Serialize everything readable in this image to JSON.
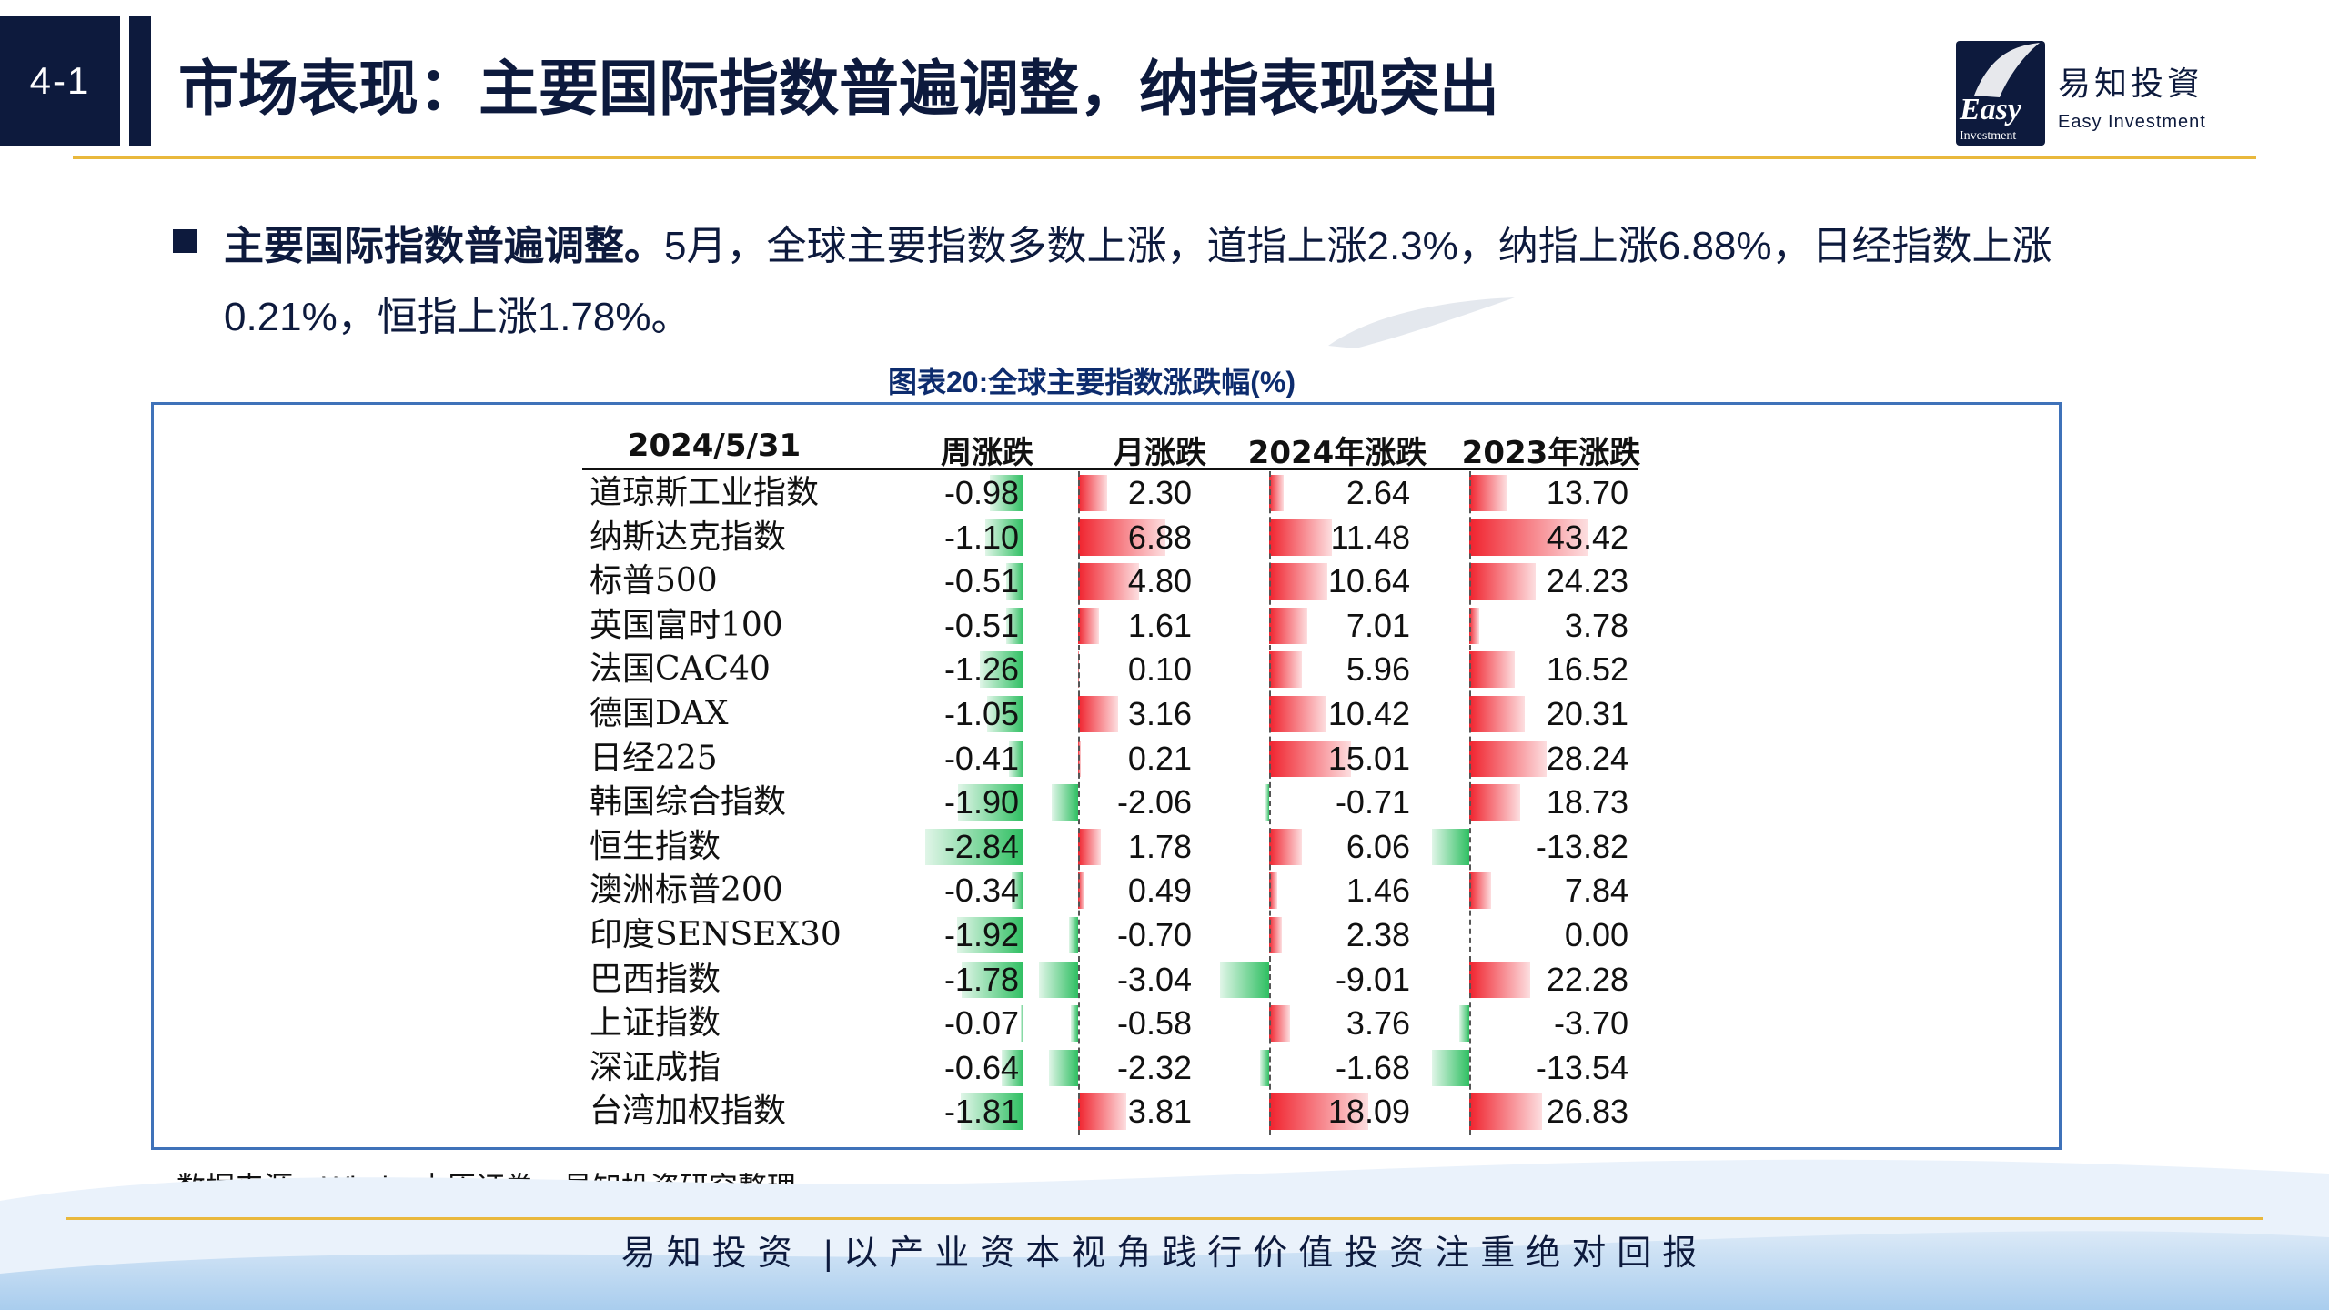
{
  "header": {
    "section_number": "4-1",
    "title": "市场表现：主要国际指数普遍调整，纳指表现突出"
  },
  "logo": {
    "mark_text": "Easy",
    "mark_subtext": "Investment",
    "name_cn": "易知投資",
    "name_en": "Easy Investment"
  },
  "bullet": {
    "bold_text": "主要国际指数普遍调整。",
    "text": "5月，全球主要指数多数上涨，道指上涨2.3%，纳指上涨6.88%，日经指数上涨0.21%，恒指上涨1.78%。"
  },
  "chart_title": "图表20:全球主要指数涨跌幅(%)",
  "chart_data": {
    "type": "table",
    "columns": [
      "2024/5/31",
      "周涨跌",
      "月涨跌",
      "2024年涨跌",
      "2023年涨跌"
    ],
    "rows": [
      {
        "name": "道琼斯工业指数",
        "week": -0.98,
        "month": 2.3,
        "ytd2024": 2.64,
        "y2023": 13.7
      },
      {
        "name": "纳斯达克指数",
        "week": -1.1,
        "month": 6.88,
        "ytd2024": 11.48,
        "y2023": 43.42
      },
      {
        "name": "标普500",
        "week": -0.51,
        "month": 4.8,
        "ytd2024": 10.64,
        "y2023": 24.23
      },
      {
        "name": "英国富时100",
        "week": -0.51,
        "month": 1.61,
        "ytd2024": 7.01,
        "y2023": 3.78
      },
      {
        "name": "法国CAC40",
        "week": -1.26,
        "month": 0.1,
        "ytd2024": 5.96,
        "y2023": 16.52
      },
      {
        "name": "德国DAX",
        "week": -1.05,
        "month": 3.16,
        "ytd2024": 10.42,
        "y2023": 20.31
      },
      {
        "name": "日经225",
        "week": -0.41,
        "month": 0.21,
        "ytd2024": 15.01,
        "y2023": 28.24
      },
      {
        "name": "韩国综合指数",
        "week": -1.9,
        "month": -2.06,
        "ytd2024": -0.71,
        "y2023": 18.73
      },
      {
        "name": "恒生指数",
        "week": -2.84,
        "month": 1.78,
        "ytd2024": 6.06,
        "y2023": -13.82
      },
      {
        "name": "澳洲标普200",
        "week": -0.34,
        "month": 0.49,
        "ytd2024": 1.46,
        "y2023": 7.84
      },
      {
        "name": "印度SENSEX30",
        "week": -1.92,
        "month": -0.7,
        "ytd2024": 2.38,
        "y2023": 0.0
      },
      {
        "name": "巴西指数",
        "week": -1.78,
        "month": -3.04,
        "ytd2024": -9.01,
        "y2023": 22.28
      },
      {
        "name": "上证指数",
        "week": -0.07,
        "month": -0.58,
        "ytd2024": 3.76,
        "y2023": -3.7
      },
      {
        "name": "深证成指",
        "week": -0.64,
        "month": -2.32,
        "ytd2024": -1.68,
        "y2023": -13.54
      },
      {
        "name": "台湾加权指数",
        "week": -1.81,
        "month": 3.81,
        "ytd2024": 18.09,
        "y2023": 26.83
      }
    ],
    "colors": {
      "positive": "#f0232e",
      "negative": "#2fbf62"
    }
  },
  "source": "数据来源：Wind、中原证券、易知投资研究整理",
  "footer": {
    "slogan": "易知投资 |以产业资本视角践行价值投资注重绝对回报"
  }
}
